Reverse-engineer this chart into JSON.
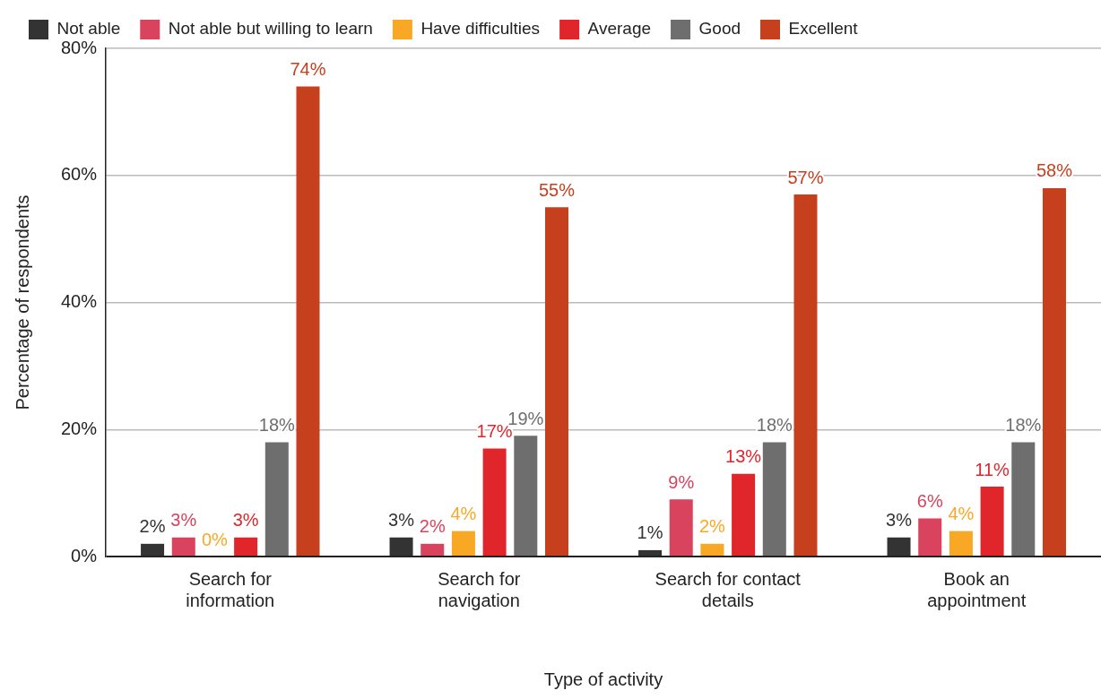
{
  "chart_data": {
    "type": "bar",
    "xlabel": "Type of activity",
    "ylabel": "Percentage of respondents",
    "categories": [
      "Search for information",
      "Search for navigation",
      "Search for contact details",
      "Book an appointment"
    ],
    "series": [
      {
        "name": "Not able",
        "color": "#333333",
        "values": [
          2,
          3,
          1,
          3
        ],
        "value_labels": [
          "2%",
          "3%",
          "1%",
          "3%"
        ]
      },
      {
        "name": "Not able but willing to learn",
        "color": "#d9435e",
        "values": [
          3,
          2,
          9,
          6
        ],
        "value_labels": [
          "3%",
          "2%",
          "9%",
          "6%"
        ]
      },
      {
        "name": "Have difficulties",
        "color": "#f9a825",
        "values": [
          0,
          4,
          2,
          4
        ],
        "value_labels": [
          "0%",
          "4%",
          "2%",
          "4%"
        ]
      },
      {
        "name": "Average",
        "color": "#e0262b",
        "values": [
          3,
          17,
          13,
          11
        ],
        "value_labels": [
          "3%",
          "17%",
          "13%",
          "11%"
        ]
      },
      {
        "name": "Good",
        "color": "#6e6e6e",
        "values": [
          18,
          19,
          18,
          18
        ],
        "value_labels": [
          "18%",
          "19%",
          "18%",
          "18%"
        ]
      },
      {
        "name": "Excellent",
        "color": "#c7401d",
        "values": [
          74,
          55,
          57,
          58
        ],
        "value_labels": [
          "74%",
          "55%",
          "57%",
          "58%"
        ]
      }
    ],
    "ylim": [
      0,
      80
    ],
    "yticks": [
      {
        "value": 0,
        "label": "0%"
      },
      {
        "value": 20,
        "label": "20%"
      },
      {
        "value": 40,
        "label": "40%"
      },
      {
        "value": 60,
        "label": "60%"
      },
      {
        "value": 80,
        "label": "80%"
      }
    ],
    "grid": "y",
    "legend": "top"
  }
}
